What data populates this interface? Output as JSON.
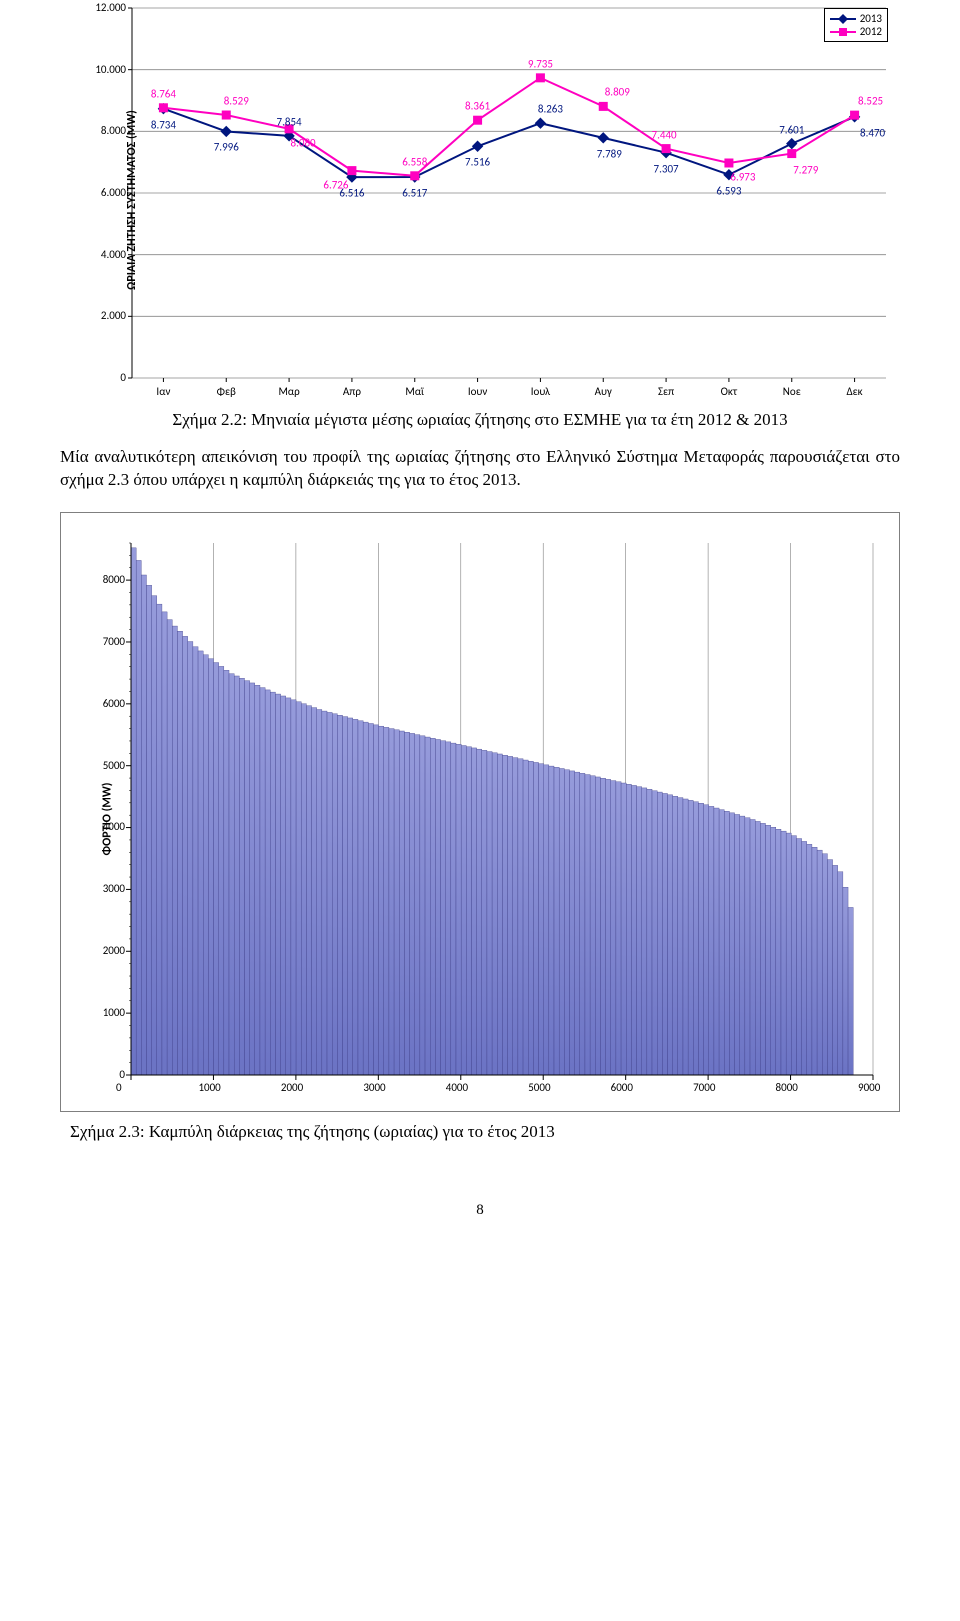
{
  "linechart": {
    "y_axis_title": "ΩΡΙΑΙΑ ΖΗΤΗΣΗ ΣΥΣΤΗΜΑΤΟΣ (MW)",
    "ylim": [
      0,
      12
    ],
    "ytick_step": 2,
    "ytick_labels": [
      "0",
      "2.000",
      "4.000",
      "6.000",
      "8.000",
      "10.000",
      "12.000"
    ],
    "categories": [
      "Ιαν",
      "Φεβ",
      "Μαρ",
      "Απρ",
      "Μαϊ",
      "Ιουν",
      "Ιουλ",
      "Αυγ",
      "Σεπ",
      "Οκτ",
      "Νοε",
      "Δεκ"
    ],
    "series": [
      {
        "name": "2013",
        "color": "#00167f",
        "marker": "diamond",
        "values": [
          8.734,
          7.996,
          7.854,
          6.516,
          6.517,
          7.516,
          8.263,
          7.789,
          7.307,
          6.593,
          7.601,
          8.47
        ],
        "labels": [
          "8.734",
          "7.996",
          "7.854",
          "6.516",
          "6.517",
          "7.516",
          "8.263",
          "7.789",
          "7.307",
          "6.593",
          "7.601",
          "8.470"
        ],
        "label_offsets": [
          [
            0,
            16
          ],
          [
            0,
            16
          ],
          [
            0,
            -14
          ],
          [
            0,
            16
          ],
          [
            0,
            16
          ],
          [
            0,
            16
          ],
          [
            10,
            -14
          ],
          [
            6,
            16
          ],
          [
            0,
            16
          ],
          [
            0,
            16
          ],
          [
            0,
            -14
          ],
          [
            18,
            16
          ]
        ]
      },
      {
        "name": "2012",
        "color": "#ff00c0",
        "marker": "square",
        "values": [
          8.764,
          8.529,
          8.08,
          6.726,
          6.558,
          8.361,
          9.735,
          8.809,
          7.44,
          6.973,
          7.279,
          8.525
        ],
        "labels": [
          "8.764",
          "8.529",
          "8.080",
          "6.726",
          "6.558",
          "8.361",
          "9.735",
          "8.809",
          "7.440",
          "6.973",
          "7.279",
          "8.525"
        ],
        "label_offsets": [
          [
            0,
            -14
          ],
          [
            10,
            -14
          ],
          [
            14,
            14
          ],
          [
            -16,
            14
          ],
          [
            0,
            -14
          ],
          [
            0,
            -14
          ],
          [
            0,
            -14
          ],
          [
            14,
            -14
          ],
          [
            -2,
            -14
          ],
          [
            14,
            14
          ],
          [
            14,
            16
          ],
          [
            16,
            -14
          ]
        ]
      }
    ],
    "legend_labels": [
      "2013",
      "2012"
    ],
    "grid_color": "#868686",
    "minor_y_lines": [
      1,
      3,
      5,
      7,
      9,
      11
    ],
    "plot_background": "#ffffff",
    "axis_label_fontsize": 11,
    "title_fontsize": 12
  },
  "caption1": "Σχήμα 2.2: Μηνιαία μέγιστα μέσης ωριαίας ζήτησης στο ΕΣΜΗΕ για τα έτη 2012 & 2013",
  "paragraph": "Μία αναλυτικότερη απεικόνιση του προφίλ της ωριαίας ζήτησης στο Ελληνικό Σύστημα Μεταφοράς παρουσιάζεται στο σχήμα 2.3 όπου υπάρχει η καμπύλη διάρκειάς της για το έτος 2013.",
  "durchart": {
    "y_axis_title": "ΦΟΡΤΙΟ (MW)",
    "ylim": [
      0,
      8600
    ],
    "ytick_step": 1000,
    "ytick_labels": [
      "0",
      "1000",
      "2000",
      "3000",
      "4000",
      "5000",
      "6000",
      "7000",
      "8000"
    ],
    "xlim": [
      0,
      9000
    ],
    "xtick_step": 1000,
    "xtick_labels": [
      "0",
      "1000",
      "2000",
      "3000",
      "4000",
      "5000",
      "6000",
      "7000",
      "8000",
      "9000"
    ],
    "bar_fill_top": "#969bdb",
    "bar_fill_bottom": "#6b73c4",
    "bar_stroke": "#3a3a85",
    "vgrid_color": "#808080",
    "n_bars": 140,
    "max_x_data": 8760,
    "curve_points": [
      [
        0,
        8600
      ],
      [
        60,
        8450
      ],
      [
        150,
        8100
      ],
      [
        300,
        7700
      ],
      [
        500,
        7300
      ],
      [
        800,
        6900
      ],
      [
        1200,
        6500
      ],
      [
        1700,
        6200
      ],
      [
        2300,
        5900
      ],
      [
        3000,
        5650
      ],
      [
        3800,
        5400
      ],
      [
        4600,
        5150
      ],
      [
        5400,
        4900
      ],
      [
        6200,
        4650
      ],
      [
        6900,
        4400
      ],
      [
        7500,
        4150
      ],
      [
        8000,
        3900
      ],
      [
        8400,
        3600
      ],
      [
        8600,
        3300
      ],
      [
        8700,
        2900
      ],
      [
        8760,
        2500
      ]
    ],
    "axis_label_fontsize": 11,
    "title_fontsize": 12
  },
  "caption2": "Σχήμα 2.3: Καμπύλη διάρκειας της ζήτησης (ωριαίας) για το έτος 2013",
  "page_number": "8"
}
